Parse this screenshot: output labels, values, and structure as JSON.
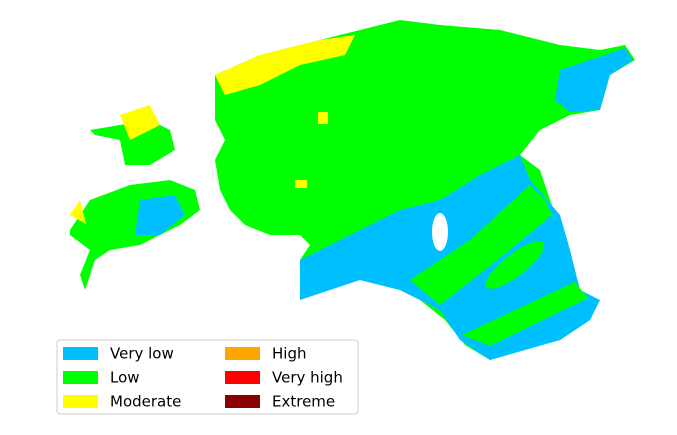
{
  "legend": {
    "items": [
      {
        "label": "Very low",
        "color": "#00bfff"
      },
      {
        "label": "Low",
        "color": "#00ff00"
      },
      {
        "label": "Moderate",
        "color": "#ffff00"
      },
      {
        "label": "High",
        "color": "#ffa500"
      },
      {
        "label": "Very high",
        "color": "#ff0000"
      },
      {
        "label": "Extreme",
        "color": "#8b0000"
      }
    ]
  }
}
